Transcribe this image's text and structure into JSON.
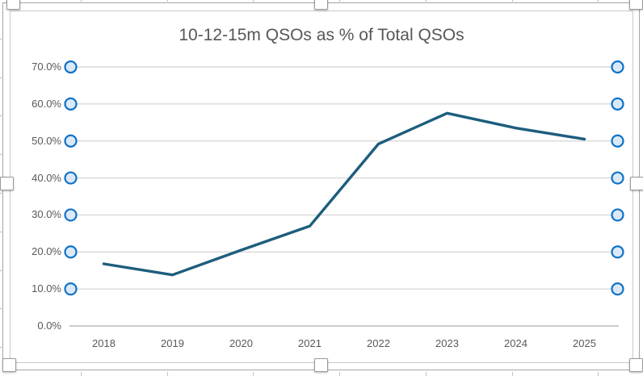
{
  "chart_data": {
    "type": "line",
    "title": "10-12-15m QSOs as % of Total QSOs",
    "categories": [
      "2018",
      "2019",
      "2020",
      "2021",
      "2022",
      "2023",
      "2024",
      "2025"
    ],
    "values": [
      16.8,
      13.8,
      20.5,
      27.0,
      49.2,
      57.5,
      53.5,
      50.5
    ],
    "xlabel": "",
    "ylabel": "",
    "ylim": [
      0,
      70
    ],
    "y_tick_step": 10,
    "y_tick_labels": [
      "0.0%",
      "10.0%",
      "20.0%",
      "30.0%",
      "40.0%",
      "50.0%",
      "60.0%",
      "70.0%"
    ],
    "grid": true,
    "legend": "none",
    "colors": {
      "line": "#1d5d7d",
      "gridline": "#d9d9d9",
      "axis_line": "#bcbcbc",
      "tick_label": "#595959",
      "title": "#575757",
      "selection_circle_stroke": "#0e72c6",
      "selection_circle_fill": "#dbe9f7"
    }
  },
  "selection_ui": {
    "chart_selected": true,
    "gridlines_selected": true,
    "gridline_endpoint_circles_per_side": 7,
    "handles": [
      "top-left",
      "top-middle",
      "top-right",
      "left-middle",
      "right-middle",
      "bottom-left",
      "bottom-middle",
      "bottom-right"
    ]
  }
}
